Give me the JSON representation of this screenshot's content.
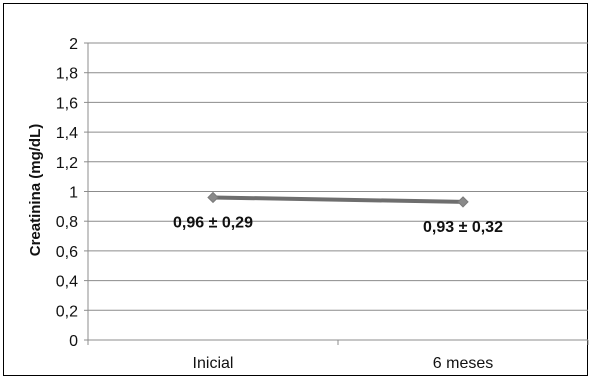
{
  "chart_data": {
    "type": "line",
    "title": "",
    "xlabel": "",
    "ylabel": "Creatinina (mg/dL)",
    "categories": [
      "Inicial",
      "6 meses"
    ],
    "series": [
      {
        "values": [
          0.96,
          0.93
        ],
        "color": "#6e6e6e",
        "marker_color": "#8a8a8a",
        "data_labels": [
          "0,96 ± 0,29",
          "0,93 ± 0,32"
        ]
      }
    ],
    "ylim": [
      0,
      2
    ],
    "yticks": [
      0,
      0.2,
      0.4,
      0.6,
      0.8,
      1,
      1.2,
      1.4,
      1.6,
      1.8,
      2
    ],
    "ytick_labels": [
      "0",
      "0,2",
      "0,4",
      "0,6",
      "0,8",
      "1",
      "1,2",
      "1,4",
      "1,6",
      "1,8",
      "2"
    ],
    "grid": true,
    "legend": "none"
  }
}
